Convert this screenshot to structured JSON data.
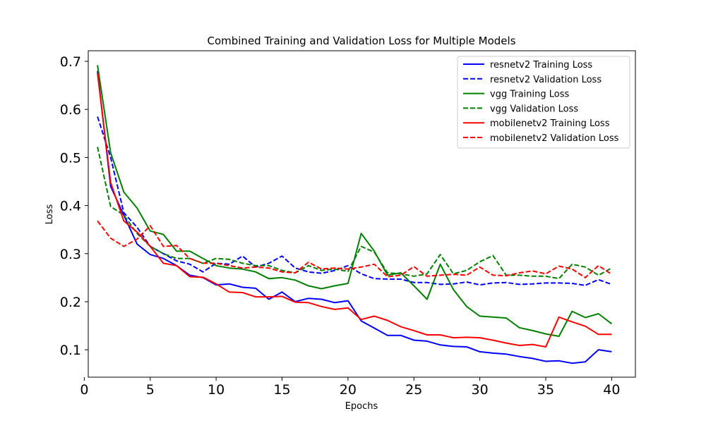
{
  "chart_data": {
    "type": "line",
    "title": "Combined Training and Validation Loss for Multiple Models",
    "xlabel": "Epochs",
    "ylabel": "Loss",
    "xlim": [
      0.3,
      41.8
    ],
    "ylim": [
      0.043,
      0.722
    ],
    "xticks": [
      0,
      5,
      10,
      15,
      20,
      25,
      30,
      35,
      40
    ],
    "yticks": [
      0.1,
      0.2,
      0.3,
      0.4,
      0.5,
      0.6,
      0.7
    ],
    "grid": false,
    "legend_position": "top-right",
    "x": [
      1,
      2,
      3,
      4,
      5,
      6,
      7,
      8,
      9,
      10,
      11,
      12,
      13,
      14,
      15,
      16,
      17,
      18,
      19,
      20,
      21,
      22,
      23,
      24,
      25,
      26,
      27,
      28,
      29,
      30,
      31,
      32,
      33,
      34,
      35,
      36,
      37,
      38,
      39,
      40
    ],
    "series": [
      {
        "name": "resnetv2 Training Loss",
        "color": "#0000ff",
        "dash": "solid",
        "values": [
          0.68,
          0.44,
          0.38,
          0.32,
          0.298,
          0.29,
          0.275,
          0.255,
          0.25,
          0.235,
          0.237,
          0.23,
          0.228,
          0.205,
          0.22,
          0.2,
          0.207,
          0.205,
          0.198,
          0.202,
          0.16,
          0.145,
          0.13,
          0.13,
          0.12,
          0.118,
          0.11,
          0.107,
          0.106,
          0.096,
          0.093,
          0.091,
          0.086,
          0.082,
          0.076,
          0.077,
          0.072,
          0.075,
          0.1,
          0.096
        ]
      },
      {
        "name": "resnetv2 Validation Loss",
        "color": "#0000ff",
        "dash": "dashed",
        "values": [
          0.585,
          0.5,
          0.385,
          0.355,
          0.315,
          0.3,
          0.285,
          0.278,
          0.262,
          0.28,
          0.278,
          0.295,
          0.272,
          0.28,
          0.295,
          0.27,
          0.262,
          0.259,
          0.265,
          0.275,
          0.258,
          0.248,
          0.247,
          0.247,
          0.24,
          0.24,
          0.236,
          0.237,
          0.241,
          0.235,
          0.239,
          0.24,
          0.236,
          0.237,
          0.239,
          0.239,
          0.238,
          0.234,
          0.246,
          0.236
        ]
      },
      {
        "name": "vgg Training Loss",
        "color": "#008000",
        "dash": "solid",
        "values": [
          0.692,
          0.51,
          0.428,
          0.395,
          0.347,
          0.34,
          0.305,
          0.305,
          0.29,
          0.275,
          0.27,
          0.268,
          0.262,
          0.248,
          0.25,
          0.245,
          0.233,
          0.227,
          0.233,
          0.238,
          0.342,
          0.305,
          0.255,
          0.26,
          0.233,
          0.205,
          0.278,
          0.225,
          0.19,
          0.17,
          0.168,
          0.166,
          0.146,
          0.14,
          0.133,
          0.128,
          0.18,
          0.167,
          0.175,
          0.154
        ]
      },
      {
        "name": "vgg Validation Loss",
        "color": "#008000",
        "dash": "dashed",
        "values": [
          0.522,
          0.398,
          0.38,
          0.342,
          0.315,
          0.3,
          0.29,
          0.29,
          0.28,
          0.29,
          0.288,
          0.28,
          0.275,
          0.275,
          0.265,
          0.26,
          0.275,
          0.265,
          0.268,
          0.263,
          0.315,
          0.303,
          0.26,
          0.258,
          0.253,
          0.258,
          0.298,
          0.258,
          0.265,
          0.283,
          0.296,
          0.255,
          0.255,
          0.253,
          0.253,
          0.248,
          0.278,
          0.272,
          0.255,
          0.27
        ]
      },
      {
        "name": "mobilenetv2 Training Loss",
        "color": "#ff0000",
        "dash": "solid",
        "values": [
          0.675,
          0.448,
          0.368,
          0.345,
          0.315,
          0.28,
          0.275,
          0.252,
          0.251,
          0.237,
          0.22,
          0.219,
          0.21,
          0.21,
          0.211,
          0.199,
          0.198,
          0.19,
          0.184,
          0.187,
          0.163,
          0.17,
          0.161,
          0.148,
          0.14,
          0.131,
          0.131,
          0.125,
          0.126,
          0.125,
          0.12,
          0.114,
          0.109,
          0.111,
          0.106,
          0.168,
          0.158,
          0.149,
          0.132,
          0.132
        ]
      },
      {
        "name": "mobilenetv2 Validation Loss",
        "color": "#ff0000",
        "dash": "dashed",
        "values": [
          0.368,
          0.332,
          0.315,
          0.33,
          0.358,
          0.315,
          0.317,
          0.29,
          0.28,
          0.28,
          0.275,
          0.27,
          0.272,
          0.27,
          0.262,
          0.26,
          0.282,
          0.268,
          0.27,
          0.268,
          0.272,
          0.278,
          0.252,
          0.255,
          0.273,
          0.253,
          0.255,
          0.257,
          0.255,
          0.272,
          0.255,
          0.254,
          0.26,
          0.264,
          0.258,
          0.274,
          0.268,
          0.25,
          0.275,
          0.257
        ]
      }
    ]
  }
}
